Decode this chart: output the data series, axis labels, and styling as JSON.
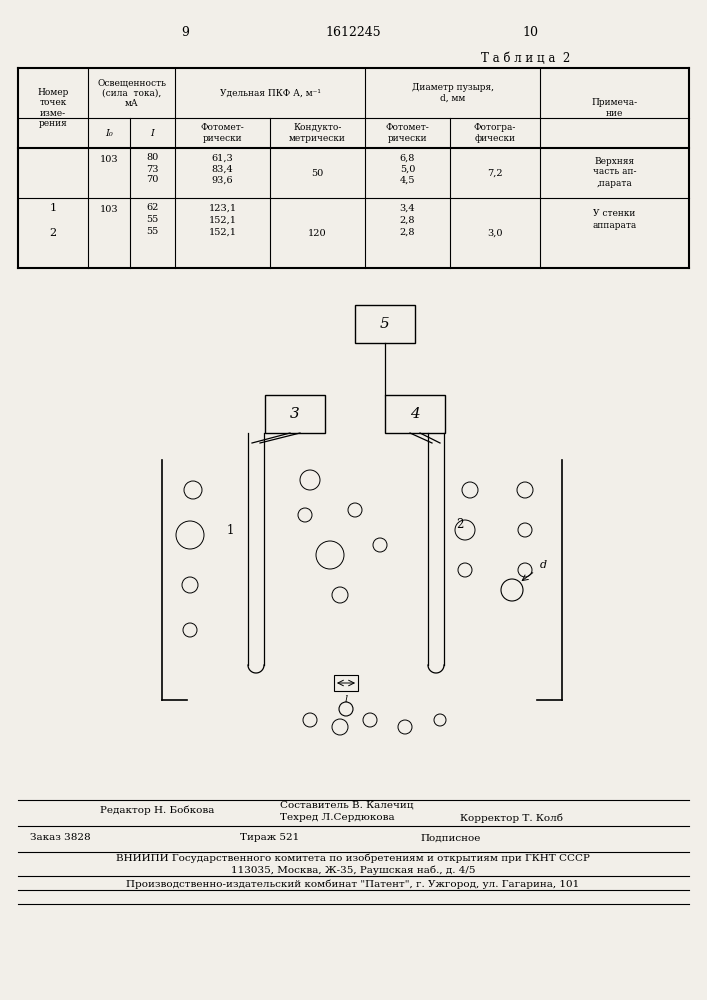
{
  "bg_color": "#f2efe9",
  "page_num_left": "9",
  "page_num_center": "1612245",
  "page_num_right": "10",
  "table_label": "Т а б л и ц а  2",
  "footer": {
    "editor_line": "Редактор Н. Бобкова",
    "compiler_line": "Составитель В. Калечиц",
    "techred_line": "Техред Л.Сердюкова",
    "corrector_line": "Корректор Т. Колб",
    "order_line": "Заказ 3828",
    "tirazh_line": "Тираж 521",
    "podpisnoe_line": "Подписное",
    "vniip1": "ВНИИПИ Государственного комитета по изобретениям и открытиям при ГКНТ СССР",
    "vniip2": "113035, Москва, Ж-35, Раушская наб., д. 4/5",
    "patent": "Производственно-издательский комбинат \"Патент\", г. Ужгород, ул. Гагарина, 101"
  }
}
